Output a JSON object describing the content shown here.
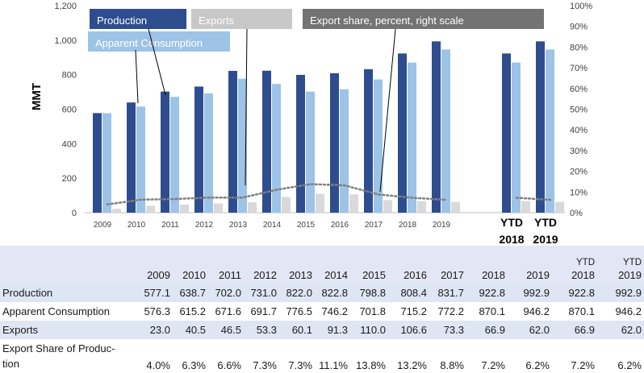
{
  "chart_data": {
    "type": "bar",
    "categories": [
      "2009",
      "2010",
      "2011",
      "2012",
      "2013",
      "2014",
      "2015",
      "2016",
      "2017",
      "2018",
      "2019",
      "",
      "YTD 2018",
      "YTD 2019"
    ],
    "series": [
      {
        "name": "Production",
        "color": "#2e4d8f",
        "values": [
          577.1,
          638.7,
          702.0,
          731.0,
          822.0,
          822.8,
          798.8,
          808.4,
          831.7,
          922.8,
          992.9,
          null,
          922.8,
          992.9
        ]
      },
      {
        "name": "Apparent Consumption",
        "color": "#9dc3e6",
        "values": [
          576.3,
          615.2,
          671.6,
          691.7,
          776.5,
          746.2,
          701.8,
          715.2,
          772.2,
          870.1,
          946.2,
          null,
          870.1,
          946.2
        ]
      },
      {
        "name": "Exports",
        "color": "#d9d9d9",
        "values": [
          23.0,
          40.5,
          46.5,
          53.3,
          60.1,
          91.3,
          110.0,
          106.6,
          73.3,
          66.9,
          62.0,
          null,
          66.9,
          62.0
        ]
      },
      {
        "name": "Export share, percent, right scale",
        "color": "#7f7f7f",
        "line": "dotted",
        "axis": "right",
        "values": [
          4.0,
          6.3,
          6.6,
          7.3,
          7.3,
          11.1,
          13.8,
          13.2,
          8.8,
          7.2,
          6.2,
          null,
          7.2,
          6.2
        ]
      }
    ],
    "ylabel": "MMT",
    "ylim": [
      0,
      1200
    ],
    "y_ticks": [
      "0",
      "200",
      "400",
      "600",
      "800",
      "1,000",
      "1,200"
    ],
    "y2lim": [
      0,
      100
    ],
    "y2_ticks": [
      "0%",
      "10%",
      "20%",
      "30%",
      "40%",
      "50%",
      "60%",
      "70%",
      "80%",
      "90%",
      "100%"
    ],
    "legend_placement": "top, callout boxes",
    "grid": false
  },
  "table": {
    "headers": [
      {
        "top": "",
        "bottom": "2009"
      },
      {
        "top": "",
        "bottom": "2010"
      },
      {
        "top": "",
        "bottom": "2011"
      },
      {
        "top": "",
        "bottom": "2012"
      },
      {
        "top": "",
        "bottom": "2013"
      },
      {
        "top": "",
        "bottom": "2014"
      },
      {
        "top": "",
        "bottom": "2015"
      },
      {
        "top": "",
        "bottom": "2016"
      },
      {
        "top": "",
        "bottom": "2017"
      },
      {
        "top": "",
        "bottom": "2018"
      },
      {
        "top": "",
        "bottom": "2019"
      },
      {
        "top": "YTD",
        "bottom": "2018"
      },
      {
        "top": "YTD",
        "bottom": "2019"
      }
    ],
    "rows": [
      {
        "label": "Production",
        "cells": [
          "577.1",
          "638.7",
          "702.0",
          "731.0",
          "822.0",
          "822.8",
          "798.8",
          "808.4",
          "831.7",
          "922.8",
          "992.9",
          "922.8",
          "992.9"
        ]
      },
      {
        "label": "Apparent Consumption",
        "cells": [
          "576.3",
          "615.2",
          "671.6",
          "691.7",
          "776.5",
          "746.2",
          "701.8",
          "715.2",
          "772.2",
          "870.1",
          "946.2",
          "870.1",
          "946.2"
        ]
      },
      {
        "label": "Exports",
        "cells": [
          "23.0",
          "40.5",
          "46.5",
          "53.3",
          "60.1",
          "91.3",
          "110.0",
          "106.6",
          "73.3",
          "66.9",
          "62.0",
          "66.9",
          "62.0"
        ]
      },
      {
        "label": "Export Share of Produc-tion",
        "cells": [
          "4.0%",
          "6.3%",
          "6.6%",
          "7.3%",
          "7.3%",
          "11.1%",
          "13.8%",
          "13.2%",
          "8.8%",
          "7.2%",
          "6.2%",
          "7.2%",
          "6.2%"
        ]
      }
    ]
  }
}
